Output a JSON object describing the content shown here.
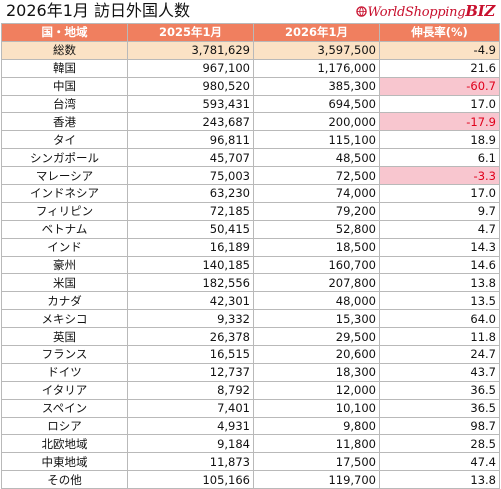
{
  "title": "2026年1月 訪日外国人数",
  "logo": {
    "main": "WorldShopping",
    "suffix": "BIZ"
  },
  "colors": {
    "header": "#f07f5f",
    "total_row": "#fbe2c5",
    "negative_bg": "#f8c6cf",
    "negative_text": "#e0001b"
  },
  "columns": [
    "国・地域",
    "2025年1月",
    "2026年1月",
    "伸長率(%)"
  ],
  "rows": [
    {
      "name": "総数",
      "y2025": "3,781,629",
      "y2026": "3,597,500",
      "growth": "-4.9",
      "total": true,
      "negative": false
    },
    {
      "name": "韓国",
      "y2025": "967,100",
      "y2026": "1,176,000",
      "growth": "21.6",
      "total": false,
      "negative": false
    },
    {
      "name": "中国",
      "y2025": "980,520",
      "y2026": "385,300",
      "growth": "-60.7",
      "total": false,
      "negative": true
    },
    {
      "name": "台湾",
      "y2025": "593,431",
      "y2026": "694,500",
      "growth": "17.0",
      "total": false,
      "negative": false
    },
    {
      "name": "香港",
      "y2025": "243,687",
      "y2026": "200,000",
      "growth": "-17.9",
      "total": false,
      "negative": true
    },
    {
      "name": "タイ",
      "y2025": "96,811",
      "y2026": "115,100",
      "growth": "18.9",
      "total": false,
      "negative": false
    },
    {
      "name": "シンガポール",
      "y2025": "45,707",
      "y2026": "48,500",
      "growth": "6.1",
      "total": false,
      "negative": false
    },
    {
      "name": "マレーシア",
      "y2025": "75,003",
      "y2026": "72,500",
      "growth": "-3.3",
      "total": false,
      "negative": true
    },
    {
      "name": "インドネシア",
      "y2025": "63,230",
      "y2026": "74,000",
      "growth": "17.0",
      "total": false,
      "negative": false
    },
    {
      "name": "フィリピン",
      "y2025": "72,185",
      "y2026": "79,200",
      "growth": "9.7",
      "total": false,
      "negative": false
    },
    {
      "name": "ベトナム",
      "y2025": "50,415",
      "y2026": "52,800",
      "growth": "4.7",
      "total": false,
      "negative": false
    },
    {
      "name": "インド",
      "y2025": "16,189",
      "y2026": "18,500",
      "growth": "14.3",
      "total": false,
      "negative": false
    },
    {
      "name": "豪州",
      "y2025": "140,185",
      "y2026": "160,700",
      "growth": "14.6",
      "total": false,
      "negative": false
    },
    {
      "name": "米国",
      "y2025": "182,556",
      "y2026": "207,800",
      "growth": "13.8",
      "total": false,
      "negative": false
    },
    {
      "name": "カナダ",
      "y2025": "42,301",
      "y2026": "48,000",
      "growth": "13.5",
      "total": false,
      "negative": false
    },
    {
      "name": "メキシコ",
      "y2025": "9,332",
      "y2026": "15,300",
      "growth": "64.0",
      "total": false,
      "negative": false
    },
    {
      "name": "英国",
      "y2025": "26,378",
      "y2026": "29,500",
      "growth": "11.8",
      "total": false,
      "negative": false
    },
    {
      "name": "フランス",
      "y2025": "16,515",
      "y2026": "20,600",
      "growth": "24.7",
      "total": false,
      "negative": false
    },
    {
      "name": "ドイツ",
      "y2025": "12,737",
      "y2026": "18,300",
      "growth": "43.7",
      "total": false,
      "negative": false
    },
    {
      "name": "イタリア",
      "y2025": "8,792",
      "y2026": "12,000",
      "growth": "36.5",
      "total": false,
      "negative": false
    },
    {
      "name": "スペイン",
      "y2025": "7,401",
      "y2026": "10,100",
      "growth": "36.5",
      "total": false,
      "negative": false
    },
    {
      "name": "ロシア",
      "y2025": "4,931",
      "y2026": "9,800",
      "growth": "98.7",
      "total": false,
      "negative": false
    },
    {
      "name": "北欧地域",
      "y2025": "9,184",
      "y2026": "11,800",
      "growth": "28.5",
      "total": false,
      "negative": false
    },
    {
      "name": "中東地域",
      "y2025": "11,873",
      "y2026": "17,500",
      "growth": "47.4",
      "total": false,
      "negative": false
    },
    {
      "name": "その他",
      "y2025": "105,166",
      "y2026": "119,700",
      "growth": "13.8",
      "total": false,
      "negative": false
    }
  ]
}
